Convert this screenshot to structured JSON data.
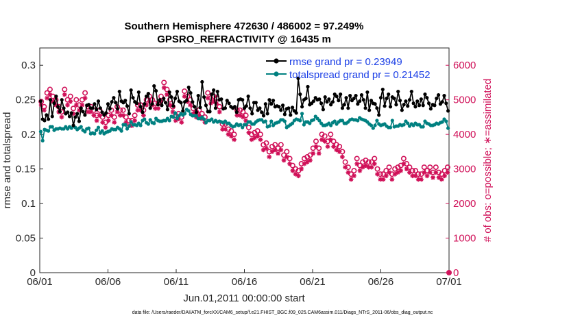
{
  "chart_data": {
    "type": "line",
    "title": "Southern Hemisphere 472630 / 486002 = 97.249%",
    "subtitle": "GPSRO_REFRACTIVITY @ 16435 m",
    "xlabel": "Jun.01,2011 00:00:00 start",
    "ylabel": "rmse and totalspread",
    "y2label": "# of obs: o=possible; ∗=assimilated",
    "footer": "data file: /Users/raeder/DAI/ATM_forcXX/CAM6_setup/f.e21.FHIST_BGC.f09_025.CAM6assim.011/Diags_NTrS_2011-06/obs_diag_output.nc",
    "xlim": [
      0,
      30
    ],
    "ylim": [
      0,
      0.325
    ],
    "y2lim": [
      0,
      6500
    ],
    "x_ticks": [
      0,
      5,
      10,
      15,
      20,
      25,
      30
    ],
    "x_tick_labels": [
      "06/01",
      "06/06",
      "06/11",
      "06/16",
      "06/21",
      "06/26",
      "07/01"
    ],
    "y_ticks": [
      "0",
      "0.05",
      "0.1",
      "0.15",
      "0.2",
      "0.25",
      "0.3"
    ],
    "y2_ticks": [
      "0",
      "1000",
      "2000",
      "3000",
      "4000",
      "5000",
      "6000"
    ],
    "grid": false,
    "legend_position": "top-right",
    "colors": {
      "rmse": "#000000",
      "spread": "#008080",
      "obs": "#d01058",
      "legend_text": "#1a3ee6"
    },
    "series": [
      {
        "name": "rmse grand pr = 0.23949",
        "axis": "left",
        "marker": "filled-circle",
        "values": [
          0.248,
          0.222,
          0.22,
          0.228,
          0.222,
          0.25,
          0.226,
          0.245,
          0.255,
          0.24,
          0.233,
          0.25,
          0.238,
          0.23,
          0.232,
          0.226,
          0.231,
          0.213,
          0.225,
          0.23,
          0.219,
          0.238,
          0.233,
          0.228,
          0.242,
          0.243,
          0.238,
          0.238,
          0.244,
          0.236,
          0.248,
          0.238,
          0.232,
          0.228,
          0.231,
          0.244,
          0.237,
          0.247,
          0.253,
          0.246,
          0.237,
          0.262,
          0.248,
          0.246,
          0.249,
          0.241,
          0.23,
          0.264,
          0.253,
          0.247,
          0.245,
          0.261,
          0.24,
          0.232,
          0.244,
          0.255,
          0.259,
          0.238,
          0.244,
          0.27,
          0.263,
          0.243,
          0.25,
          0.242,
          0.252,
          0.246,
          0.236,
          0.261,
          0.254,
          0.241,
          0.252,
          0.262,
          0.248,
          0.246,
          0.234,
          0.247,
          0.249,
          0.268,
          0.26,
          0.247,
          0.24,
          0.232,
          0.256,
          0.239,
          0.276,
          0.254,
          0.242,
          0.233,
          0.233,
          0.258,
          0.264,
          0.238,
          0.262,
          0.25,
          0.251,
          0.237,
          0.238,
          0.249,
          0.245,
          0.24,
          0.238,
          0.24,
          0.232,
          0.25,
          0.251,
          0.25,
          0.238,
          0.241,
          0.255,
          0.238,
          0.23,
          0.246,
          0.246,
          0.235,
          0.238,
          0.232,
          0.227,
          0.244,
          0.23,
          0.25,
          0.244,
          0.249,
          0.24,
          0.241,
          0.24,
          0.235,
          0.242,
          0.229,
          0.237,
          0.238,
          0.228,
          0.239,
          0.234,
          0.231,
          0.281,
          0.258,
          0.24,
          0.25,
          0.252,
          0.269,
          0.243,
          0.245,
          0.248,
          0.253,
          0.25,
          0.251,
          0.245,
          0.236,
          0.254,
          0.247,
          0.251,
          0.243,
          0.247,
          0.258,
          0.255,
          0.249,
          0.258,
          0.238,
          0.243,
          0.253,
          0.238,
          0.256,
          0.249,
          0.252,
          0.256,
          0.244,
          0.248,
          0.257,
          0.25,
          0.238,
          0.261,
          0.235,
          0.249,
          0.245,
          0.244,
          0.238,
          0.228,
          0.253,
          0.265,
          0.241,
          0.252,
          0.258,
          0.24,
          0.254,
          0.252,
          0.243,
          0.262,
          0.249,
          0.235,
          0.243,
          0.248,
          0.241,
          0.25,
          0.262,
          0.245,
          0.24,
          0.248,
          0.242,
          0.251,
          0.242,
          0.258,
          0.253,
          0.245,
          0.237,
          0.243,
          0.242,
          0.252,
          0.257,
          0.244,
          0.247,
          0.256,
          0.245,
          0.234
        ]
      },
      {
        "name": "totalspread grand pr = 0.21452",
        "axis": "left",
        "marker": "filled-circle",
        "values": [
          0.204,
          0.191,
          0.207,
          0.206,
          0.205,
          0.211,
          0.211,
          0.206,
          0.208,
          0.208,
          0.209,
          0.208,
          0.208,
          0.211,
          0.208,
          0.211,
          0.209,
          0.212,
          0.21,
          0.207,
          0.209,
          0.211,
          0.206,
          0.204,
          0.208,
          0.209,
          0.201,
          0.202,
          0.201,
          0.206,
          0.21,
          0.202,
          0.205,
          0.201,
          0.203,
          0.204,
          0.205,
          0.208,
          0.207,
          0.207,
          0.21,
          0.208,
          0.205,
          0.214,
          0.214,
          0.208,
          0.212,
          0.218,
          0.214,
          0.214,
          0.213,
          0.216,
          0.213,
          0.22,
          0.222,
          0.217,
          0.215,
          0.221,
          0.217,
          0.216,
          0.223,
          0.22,
          0.219,
          0.219,
          0.22,
          0.22,
          0.223,
          0.22,
          0.226,
          0.225,
          0.231,
          0.223,
          0.227,
          0.23,
          0.228,
          0.23,
          0.236,
          0.234,
          0.229,
          0.227,
          0.227,
          0.227,
          0.223,
          0.223,
          0.225,
          0.222,
          0.217,
          0.22,
          0.22,
          0.222,
          0.218,
          0.22,
          0.218,
          0.219,
          0.218,
          0.217,
          0.219,
          0.216,
          0.216,
          0.213,
          0.211,
          0.212,
          0.215,
          0.213,
          0.214,
          0.21,
          0.214,
          0.214,
          0.218,
          0.218,
          0.215,
          0.215,
          0.218,
          0.22,
          0.221,
          0.221,
          0.218,
          0.219,
          0.211,
          0.212,
          0.219,
          0.213,
          0.216,
          0.217,
          0.218,
          0.221,
          0.221,
          0.219,
          0.21,
          0.212,
          0.214,
          0.216,
          0.22,
          0.222,
          0.221,
          0.22,
          0.23,
          0.214,
          0.218,
          0.218,
          0.216,
          0.22,
          0.221,
          0.226,
          0.223,
          0.22,
          0.216,
          0.213,
          0.213,
          0.214,
          0.216,
          0.213,
          0.217,
          0.219,
          0.215,
          0.218,
          0.22,
          0.22,
          0.216,
          0.216,
          0.218,
          0.221,
          0.222,
          0.221,
          0.221,
          0.22,
          0.224,
          0.222,
          0.221,
          0.22,
          0.218,
          0.215,
          0.213,
          0.209,
          0.213,
          0.22,
          0.215,
          0.213,
          0.214,
          0.215,
          0.212,
          0.21,
          0.21,
          0.22,
          0.211,
          0.212,
          0.212,
          0.214,
          0.213,
          0.214,
          0.219,
          0.216,
          0.212,
          0.215,
          0.213,
          0.216,
          0.214,
          0.214,
          0.211,
          0.211,
          0.219,
          0.216,
          0.215,
          0.213,
          0.213,
          0.214,
          0.216,
          0.215,
          0.217,
          0.218,
          0.222,
          0.219,
          0.209
        ]
      },
      {
        "name": "possible",
        "axis": "right",
        "marker": "open-circle",
        "values": [
          4950,
          4800,
          5200,
          5300,
          5100,
          5000,
          4800,
          4650,
          5300,
          5000,
          5100,
          4750,
          5000,
          4850,
          5000,
          5200,
          4800,
          4800,
          4700,
          4550,
          4700,
          4500,
          4350,
          4550,
          4700,
          4500,
          4800,
          4700,
          4700,
          4500,
          4400,
          4400,
          4550,
          4850,
          4850,
          4700,
          5000,
          5100,
          5000,
          4900,
          4900,
          5100,
          5500,
          5300,
          5000,
          4800,
          4550,
          4600,
          4500,
          5250,
          5100,
          5000,
          4750,
          4650,
          4700,
          4600,
          4500,
          5200,
          5050,
          5100,
          5050,
          4800,
          4300,
          4300,
          4150,
          4100,
          4000,
          4700,
          4700,
          4650,
          4550,
          4200,
          4000,
          4050,
          4100,
          4000,
          3700,
          3750,
          3500,
          3650,
          3700,
          3600,
          3700,
          3400,
          3500,
          3300,
          3100,
          3000,
          2950,
          3150,
          3300,
          3350,
          3400,
          3600,
          3800,
          3600,
          4000,
          3950,
          3800,
          4000,
          3800,
          3700,
          3650,
          3500,
          3200,
          3050,
          2850,
          2950,
          3300,
          3100,
          3200,
          3250,
          3200,
          3200,
          3300,
          3000,
          2850,
          2850,
          2950,
          3050,
          2850,
          3000,
          3050,
          3100,
          3300,
          3150,
          3050,
          2950,
          2950,
          2850,
          2850,
          3050,
          2950,
          3050,
          2900,
          3050,
          2900,
          2850,
          2950,
          3050
        ]
      },
      {
        "name": "assimilated",
        "axis": "right",
        "marker": "asterisk",
        "values": [
          4850,
          4700,
          5050,
          5150,
          4950,
          4850,
          4650,
          4500,
          5150,
          4850,
          4950,
          4600,
          4850,
          4700,
          4850,
          5050,
          4650,
          4650,
          4550,
          4400,
          4550,
          4350,
          4200,
          4400,
          4550,
          4350,
          4650,
          4550,
          4550,
          4350,
          4250,
          4250,
          4400,
          4700,
          4700,
          4550,
          4850,
          4950,
          4850,
          4750,
          4750,
          4950,
          5350,
          5150,
          4850,
          4650,
          4400,
          4450,
          4350,
          5100,
          4950,
          4850,
          4600,
          4500,
          4550,
          4450,
          4350,
          5050,
          4900,
          4950,
          4900,
          4650,
          4150,
          4150,
          4000,
          3950,
          3850,
          4550,
          4550,
          4500,
          4400,
          4050,
          3850,
          3900,
          3950,
          3850,
          3550,
          3600,
          3350,
          3500,
          3550,
          3450,
          3550,
          3250,
          3350,
          3150,
          2950,
          2850,
          2800,
          3000,
          3150,
          3200,
          3250,
          3450,
          3650,
          3450,
          3850,
          3800,
          3650,
          3850,
          3650,
          3550,
          3500,
          3350,
          3050,
          2900,
          2700,
          2800,
          3150,
          2950,
          3050,
          3100,
          3050,
          3050,
          3150,
          2850,
          2700,
          2700,
          2800,
          2900,
          2700,
          2850,
          2900,
          2950,
          3150,
          3000,
          2900,
          2800,
          2800,
          2700,
          2700,
          2900,
          2800,
          2900,
          2750,
          2900,
          2750,
          2700,
          2800,
          2900
        ]
      }
    ]
  }
}
